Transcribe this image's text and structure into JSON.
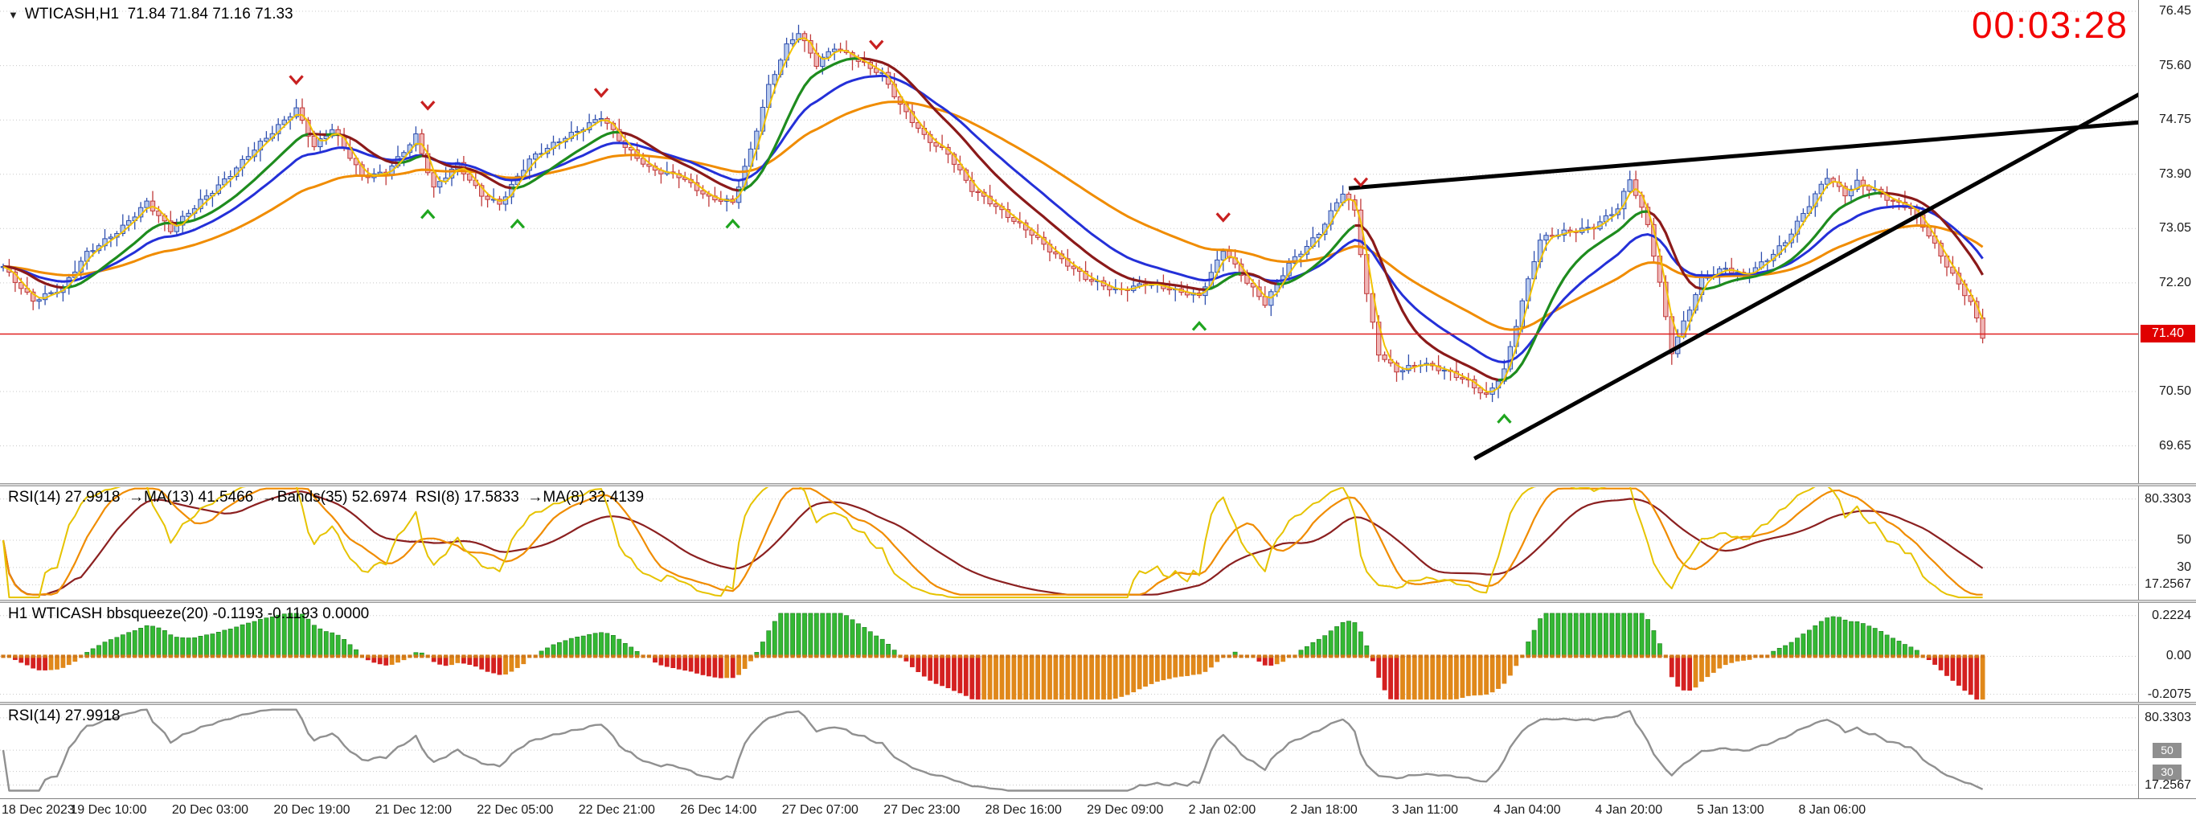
{
  "window": {
    "symbol_marker": "▼",
    "symbol_line": "WTICASH,H1  71.84 71.84 71.16 71.33",
    "countdown": "00:03:28"
  },
  "colors": {
    "background": "#ffffff",
    "grid": "#c8c8c8",
    "axis_text": "#1a1a1a",
    "bull_stroke": "#2f4fae",
    "bull_fill": "#b9cbed",
    "bear_stroke": "#c03a3a",
    "bear_fill": "#f0b6b6",
    "ma_fast_yellow": "#f2c200",
    "ma_mid_up_green": "#1e8c1e",
    "ma_mid_down_red": "#8b1a1a",
    "ma_slow_blue": "#2430d8",
    "ma_slower_orange": "#f08c00",
    "trend_line": "#000000",
    "hline_red": "#e02020",
    "price_badge_bg": "#e00000",
    "countdown_red": "#f20000",
    "buy_arrow": "#1fa51f",
    "sell_arrow": "#c82020",
    "rsi_yellow": "#e6c300",
    "rsi_orange": "#f08c00",
    "rsi_maroon": "#8b2020",
    "squeeze_green": "#33b833",
    "squeeze_green_stroke": "#1d7a1d",
    "squeeze_red": "#d42020",
    "squeeze_orange": "#e0881a",
    "squeeze_zero_orange": "#d07818",
    "rsi2_gray": "#909090",
    "level_badge_bg": "#8f8f8f"
  },
  "chart_data": {
    "type": "candlestick",
    "symbol": "WTICASH",
    "timeframe": "H1",
    "ohlc": {
      "open": "71.84",
      "high": "71.84",
      "low": "71.16",
      "close": "71.33"
    },
    "bars_total": 332,
    "price_path": [
      [
        0,
        72.45
      ],
      [
        5,
        71.95
      ],
      [
        10,
        72.1
      ],
      [
        14,
        72.65
      ],
      [
        20,
        73.1
      ],
      [
        24,
        73.45
      ],
      [
        28,
        73.0
      ],
      [
        33,
        73.5
      ],
      [
        38,
        73.9
      ],
      [
        44,
        74.45
      ],
      [
        49,
        74.95
      ],
      [
        52,
        74.35
      ],
      [
        55,
        74.6
      ],
      [
        60,
        73.85
      ],
      [
        64,
        73.95
      ],
      [
        69,
        74.5
      ],
      [
        72,
        73.65
      ],
      [
        76,
        74.05
      ],
      [
        80,
        73.6
      ],
      [
        83,
        73.45
      ],
      [
        88,
        74.1
      ],
      [
        94,
        74.5
      ],
      [
        100,
        74.8
      ],
      [
        104,
        74.3
      ],
      [
        108,
        74.0
      ],
      [
        113,
        73.9
      ],
      [
        118,
        73.5
      ],
      [
        122,
        73.45
      ],
      [
        125,
        74.3
      ],
      [
        128,
        75.3
      ],
      [
        131,
        75.9
      ],
      [
        133,
        76.1
      ],
      [
        136,
        75.6
      ],
      [
        139,
        75.9
      ],
      [
        143,
        75.7
      ],
      [
        147,
        75.45
      ],
      [
        150,
        74.95
      ],
      [
        154,
        74.5
      ],
      [
        158,
        74.25
      ],
      [
        162,
        73.65
      ],
      [
        167,
        73.3
      ],
      [
        172,
        73.0
      ],
      [
        177,
        72.55
      ],
      [
        181,
        72.25
      ],
      [
        186,
        72.1
      ],
      [
        191,
        72.2
      ],
      [
        196,
        72.05
      ],
      [
        200,
        72.0
      ],
      [
        204,
        72.75
      ],
      [
        208,
        72.2
      ],
      [
        211,
        71.85
      ],
      [
        215,
        72.5
      ],
      [
        220,
        73.0
      ],
      [
        224,
        73.6
      ],
      [
        226,
        73.3
      ],
      [
        228,
        72.0
      ],
      [
        230,
        71.1
      ],
      [
        233,
        70.85
      ],
      [
        237,
        70.95
      ],
      [
        241,
        70.8
      ],
      [
        245,
        70.65
      ],
      [
        248,
        70.45
      ],
      [
        251,
        70.85
      ],
      [
        254,
        71.9
      ],
      [
        257,
        72.85
      ],
      [
        261,
        73.0
      ],
      [
        266,
        73.1
      ],
      [
        270,
        73.35
      ],
      [
        272,
        73.8
      ],
      [
        275,
        73.1
      ],
      [
        277,
        72.2
      ],
      [
        279,
        71.15
      ],
      [
        281,
        71.6
      ],
      [
        284,
        72.25
      ],
      [
        288,
        72.4
      ],
      [
        291,
        72.3
      ],
      [
        295,
        72.6
      ],
      [
        298,
        72.85
      ],
      [
        302,
        73.4
      ],
      [
        305,
        73.85
      ],
      [
        308,
        73.6
      ],
      [
        310,
        73.8
      ],
      [
        313,
        73.65
      ],
      [
        316,
        73.45
      ],
      [
        319,
        73.35
      ],
      [
        322,
        72.95
      ],
      [
        326,
        72.35
      ],
      [
        329,
        71.9
      ],
      [
        331,
        71.35
      ]
    ],
    "x_axis": {
      "labels": [
        "18 Dec 2023",
        "19 Dec 10:00",
        "20 Dec 03:00",
        "20 Dec 19:00",
        "21 Dec 12:00",
        "22 Dec 05:00",
        "22 Dec 21:00",
        "26 Dec 14:00",
        "27 Dec 07:00",
        "27 Dec 23:00",
        "28 Dec 16:00",
        "29 Dec 09:00",
        "2 Jan 02:00",
        "2 Jan 18:00",
        "3 Jan 11:00",
        "4 Jan 04:00",
        "4 Jan 20:00",
        "5 Jan 13:00",
        "8 Jan 06:00"
      ],
      "first_label_bar": 2,
      "bar_step": 17
    },
    "main_panel": {
      "y_ticks": [
        "76.45",
        "75.60",
        "74.75",
        "73.90",
        "73.05",
        "72.20",
        "70.50",
        "69.65"
      ],
      "grid_step": 0.85,
      "current_price": "71.40",
      "hline_price": 71.4,
      "trend_lines": [
        {
          "from_bar": 246,
          "from_price": 69.45,
          "to_bar": 362,
          "to_price": 75.4
        },
        {
          "from_bar": 225,
          "from_price": 73.68,
          "to_bar": 362,
          "to_price": 74.75
        }
      ],
      "buy_arrows": [
        [
          71,
          73.3
        ],
        [
          86,
          73.15
        ],
        [
          122,
          73.15
        ],
        [
          200,
          71.55
        ],
        [
          251,
          70.1
        ]
      ],
      "sell_arrows": [
        [
          49,
          75.35
        ],
        [
          71,
          74.95
        ],
        [
          100,
          75.15
        ],
        [
          146,
          75.9
        ],
        [
          204,
          73.2
        ],
        [
          227,
          73.75
        ]
      ]
    },
    "rsi_panel": {
      "label": "RSI(14) 27.9918  →MA(13) 41.5466  →Bands(35) 52.6974  RSI(8) 17.5833  →MA(8) 32.4139",
      "levels": [
        "80.3303",
        "50",
        "30",
        "17.2567"
      ],
      "values": {
        "rsi14": "27.9918",
        "ma13": "41.5466",
        "bands35": "52.6974",
        "rsi8": "17.5833",
        "ma8": "32.4139"
      }
    },
    "squeeze_panel": {
      "label": "H1 WTICASH bbsqueeze(20) -0.1193 -0.1193 0.0000",
      "levels": [
        "0.2224",
        "0.00",
        "-0.2075"
      ],
      "values": {
        "current": "-0.1193",
        "previous": "-0.1193",
        "zero": "0.0000"
      }
    },
    "rsi2_panel": {
      "label": "RSI(14) 27.9918",
      "levels": [
        "80.3303",
        "50",
        "30",
        "17.2567"
      ],
      "badge_levels": [
        "50",
        "30"
      ],
      "value": "27.9918"
    }
  }
}
